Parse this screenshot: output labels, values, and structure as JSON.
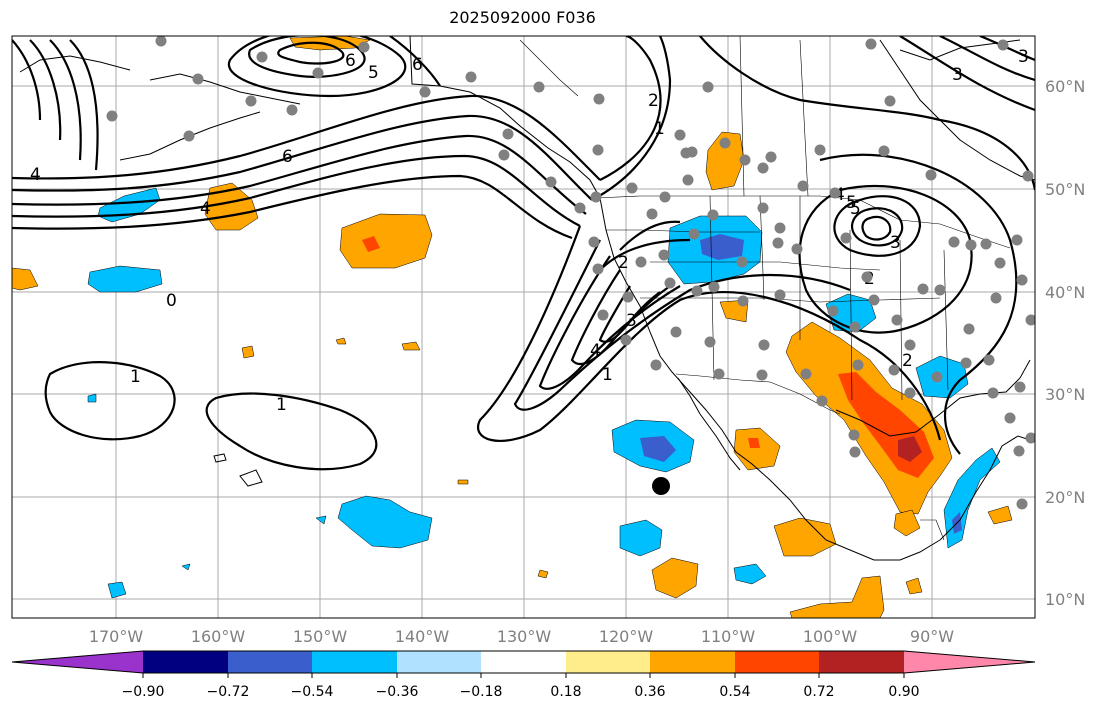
{
  "title": "2025092000 F036",
  "latitude_labels": [
    "60°N",
    "50°N",
    "40°N",
    "30°N",
    "20°N",
    "10°N"
  ],
  "longitude_labels": [
    "170°W",
    "160°W",
    "150°W",
    "140°W",
    "130°W",
    "120°W",
    "110°W",
    "100°W",
    "90°W"
  ],
  "colorbar": {
    "ticks": [
      "−0.90",
      "−0.72",
      "−0.54",
      "−0.36",
      "−0.18",
      "0.18",
      "0.36",
      "0.54",
      "0.72",
      "0.90"
    ],
    "colors": [
      "#9933cc",
      "#000080",
      "#3a5fcd",
      "#00bfff",
      "#b0e2ff",
      "#ffffff",
      "#ffec8b",
      "#ffa500",
      "#ff4500",
      "#b22222",
      "#ff88aa"
    ]
  },
  "contour_labels": [
    "6",
    "5",
    "4",
    "6",
    "6",
    "3",
    "4",
    "0",
    "1",
    "1",
    "2",
    "1",
    "2",
    "3",
    "4",
    "5",
    "1",
    "4",
    "5",
    "3",
    "2",
    "2",
    "3"
  ],
  "colors": {
    "grid": "#a8a8a8",
    "station_dot": "#808080",
    "marker": "#000000"
  }
}
